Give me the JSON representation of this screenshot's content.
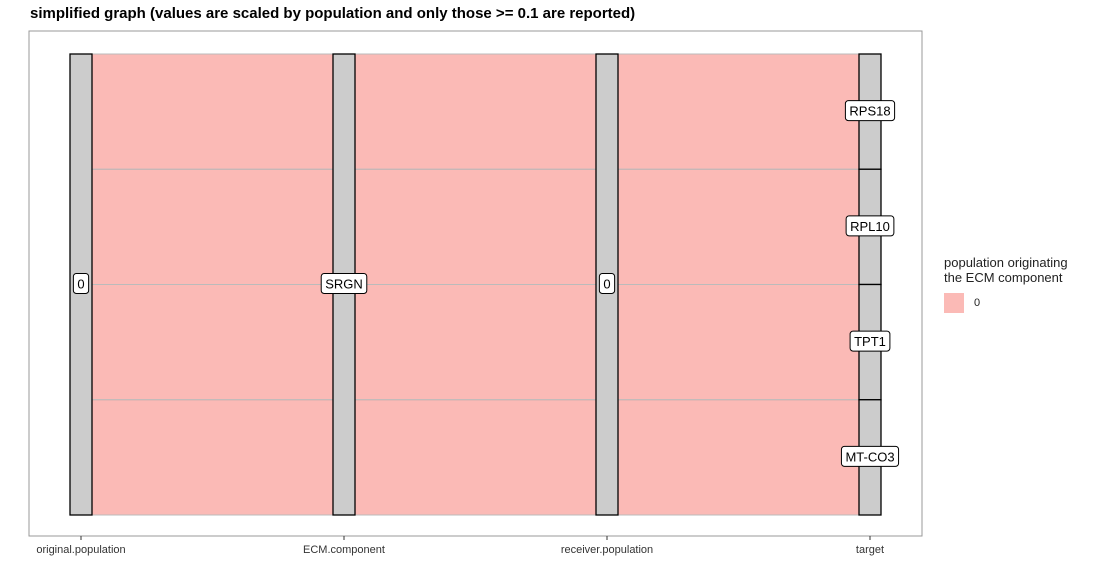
{
  "chart_data": {
    "type": "alluvial",
    "title": "simplified graph (values are scaled by population and only those >= 0.1 are reported)",
    "axes": [
      "original.population",
      "ECM.component",
      "receiver.population",
      "target"
    ],
    "strata": [
      [
        {
          "label": "0",
          "value": 4
        }
      ],
      [
        {
          "label": "SRGN",
          "value": 4
        }
      ],
      [
        {
          "label": "0",
          "value": 4
        }
      ],
      [
        {
          "label": "RPS18",
          "value": 1
        },
        {
          "label": "RPL10",
          "value": 1
        },
        {
          "label": "TPT1",
          "value": 1
        },
        {
          "label": "MT-CO3",
          "value": 1
        }
      ]
    ],
    "flows": [
      {
        "path": [
          "0",
          "SRGN",
          "0",
          "RPS18"
        ],
        "value": 1,
        "group": "0"
      },
      {
        "path": [
          "0",
          "SRGN",
          "0",
          "RPL10"
        ],
        "value": 1,
        "group": "0"
      },
      {
        "path": [
          "0",
          "SRGN",
          "0",
          "TPT1"
        ],
        "value": 1,
        "group": "0"
      },
      {
        "path": [
          "0",
          "SRGN",
          "0",
          "MT-CO3"
        ],
        "value": 1,
        "group": "0"
      }
    ],
    "legend": {
      "title": "population originating\nthe ECM component",
      "items": [
        {
          "label": "0",
          "color": "#F8766D"
        }
      ],
      "position": "right"
    },
    "colors": {
      "flow": "#F8766D",
      "stratum_fill": "#CCCCCC",
      "stratum_border": "#000000"
    },
    "grid": false
  }
}
